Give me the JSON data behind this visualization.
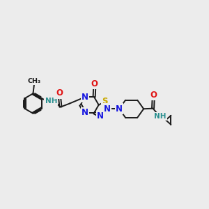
{
  "bg_color": "#ececec",
  "atom_colors": {
    "C": "#1a1a1a",
    "N": "#1414e0",
    "O": "#e01414",
    "S": "#c8a800",
    "H": "#2a9090"
  },
  "bond_color": "#1a1a1a",
  "bond_width": 1.4,
  "font_size_atom": 8.5,
  "font_size_small": 7.5,
  "figsize": [
    3.0,
    3.0
  ],
  "dpi": 100,
  "xlim": [
    0,
    10
  ],
  "ylim": [
    2.5,
    7.5
  ]
}
